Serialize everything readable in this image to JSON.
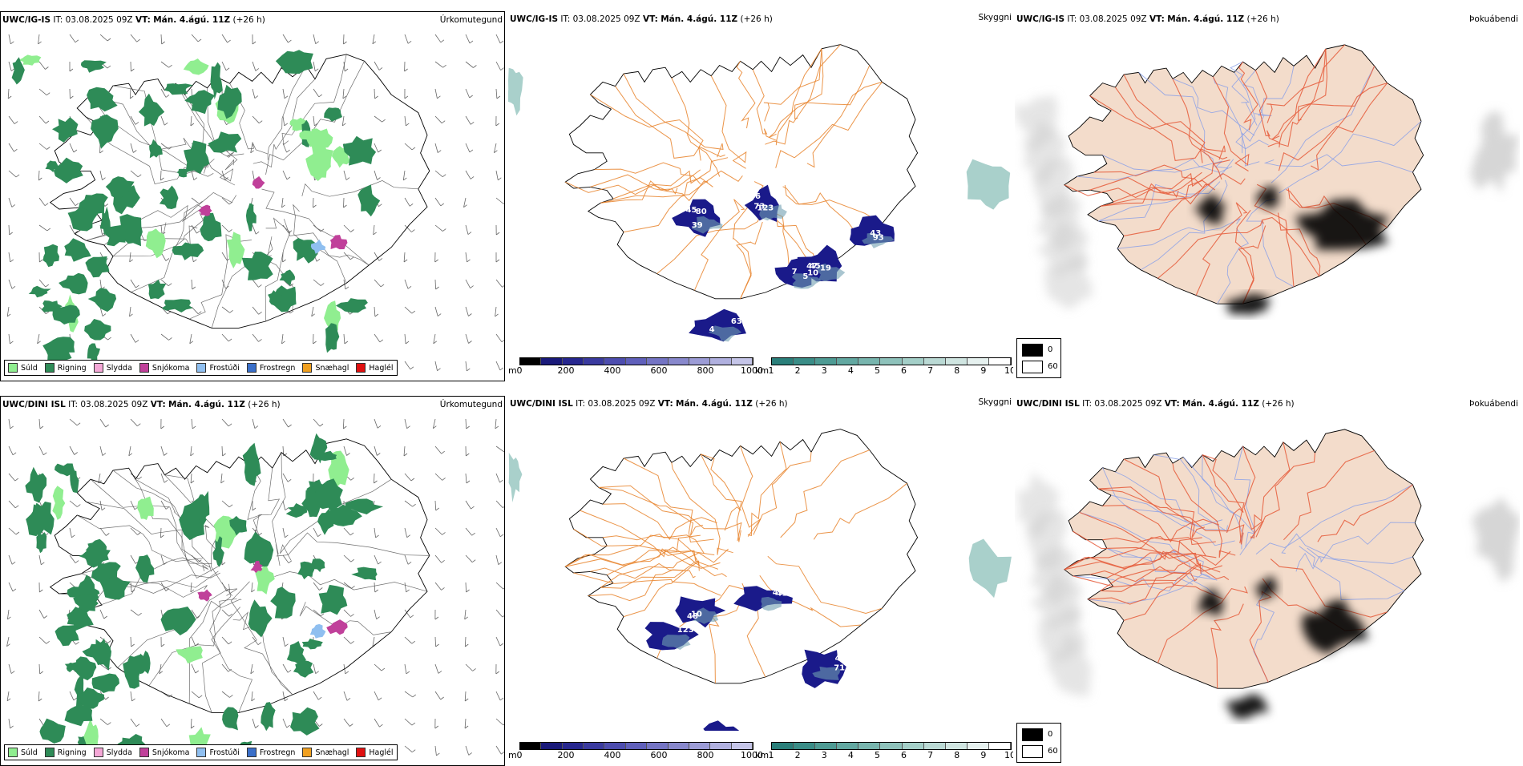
{
  "rows": [
    {
      "model": "UWC/IG-IS",
      "it_label": "IT:",
      "it_value": "03.08.2025 09Z",
      "vt_label": "VT:",
      "vt_value": "Mán. 4.ágú. 11Z",
      "lead": "(+26 h)",
      "panels": {
        "precip": {
          "title": "Úrkomutegund"
        },
        "clouds": {
          "title": "Skyggni"
        },
        "fog": {
          "title": "Þokuábendi"
        }
      },
      "cloud_labels": [
        "45",
        "46",
        "47",
        "45",
        "63",
        "93",
        "80",
        "123",
        "10",
        "5",
        "4",
        "43",
        "39",
        "73",
        "19",
        "7"
      ]
    },
    {
      "model": "UWC/DINI ISL",
      "it_label": "IT:",
      "it_value": "03.08.2025 09Z",
      "vt_label": "VT:",
      "vt_value": "Mán. 4.ágú. 11Z",
      "lead": "(+26 h)",
      "panels": {
        "precip": {
          "title": "Úrkomutegund"
        },
        "clouds": {
          "title": "Skyggni"
        },
        "fog": {
          "title": "Þokuábendi"
        }
      },
      "cloud_labels": [
        "48",
        "45",
        "71",
        "46",
        "123",
        "10",
        "41",
        "49",
        "14"
      ]
    }
  ],
  "precip_legend": [
    {
      "label": "Súld",
      "color": "#90ee90"
    },
    {
      "label": "Rigning",
      "color": "#2e8b57"
    },
    {
      "label": "Slydda",
      "color": "#f4a7d6"
    },
    {
      "label": "Snjókoma",
      "color": "#c0409a"
    },
    {
      "label": "Frostúði",
      "color": "#8fbff0"
    },
    {
      "label": "Frostregn",
      "color": "#3a6fc9"
    },
    {
      "label": "Snæhagl",
      "color": "#f0a020"
    },
    {
      "label": "Haglél",
      "color": "#e01010"
    }
  ],
  "cloudbase_bar": {
    "unit": "m",
    "ticks": [
      "0",
      "200",
      "400",
      "600",
      "800",
      "1000"
    ],
    "colors": [
      "#000000",
      "#1a1a7a",
      "#27278f",
      "#3a3a9f",
      "#4d4daf",
      "#6060bb",
      "#7474c4",
      "#8888cc",
      "#9c9cd6",
      "#b0b0df",
      "#c5c5e8"
    ]
  },
  "visibility_bar": {
    "unit": "km",
    "ticks": [
      "1",
      "2",
      "3",
      "4",
      "5",
      "6",
      "7",
      "8",
      "9",
      "10"
    ],
    "colors": [
      "#2a7f7a",
      "#3a8d87",
      "#4e9b94",
      "#62a8a1",
      "#78b5ae",
      "#8ec2bb",
      "#a4cfc8",
      "#bad9d4",
      "#d0e5e1",
      "#e6f1ef",
      "#ffffff"
    ]
  },
  "fog_legend": [
    {
      "label": "0",
      "color": "#000000"
    },
    {
      "label": "60",
      "color": "#ffffff"
    }
  ],
  "colors": {
    "rain": "#2e8b57",
    "drizzle": "#90ee90",
    "snow": "#c0409a",
    "freezing": "#8fbff0",
    "roads": "#e8822a",
    "fog_land": "#f3dccb",
    "fog_roads": "#e55a3a",
    "rivers": "#8aa0e8",
    "coast": "#000000"
  }
}
